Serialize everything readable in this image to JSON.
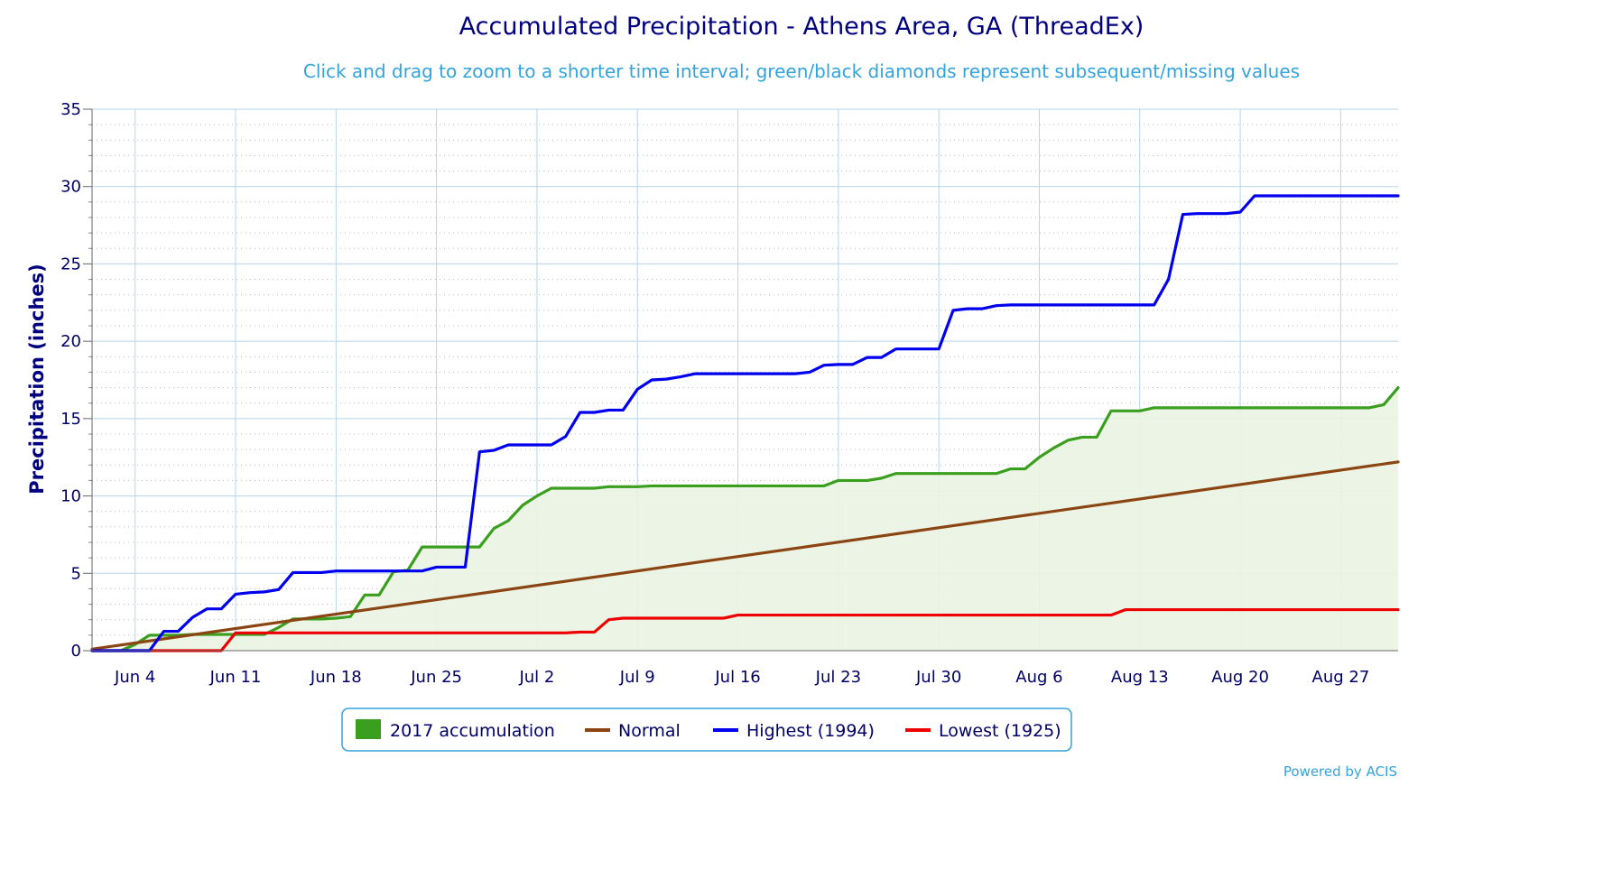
{
  "chart_data": {
    "type": "line",
    "title": "Accumulated Precipitation - Athens Area, GA (ThreadEx)",
    "subtitle": "Click and drag to zoom to a shorter time interval; green/black diamonds represent subsequent/missing values",
    "ylabel": "Precipitation (inches)",
    "xlabel": "",
    "credit": "Powered by ACIS",
    "ylim": [
      0,
      35
    ],
    "y_ticks": [
      0,
      5,
      10,
      15,
      20,
      25,
      30,
      35
    ],
    "y_tick_labels": [
      "0",
      "5",
      "10",
      "15",
      "20",
      "25",
      "30",
      "35"
    ],
    "xlim": [
      "2017-06-01",
      "2017-08-31"
    ],
    "x_ticks": [
      "2017-06-04",
      "2017-06-11",
      "2017-06-18",
      "2017-06-25",
      "2017-07-02",
      "2017-07-09",
      "2017-07-16",
      "2017-07-23",
      "2017-07-30",
      "2017-08-06",
      "2017-08-13",
      "2017-08-20",
      "2017-08-27"
    ],
    "x_tick_labels": [
      "Jun 4",
      "Jun 11",
      "Jun 18",
      "Jun 25",
      "Jul 2",
      "Jul 9",
      "Jul 16",
      "Jul 23",
      "Jul 30",
      "Aug 6",
      "Aug 13",
      "Aug 20",
      "Aug 27"
    ],
    "grid": true,
    "legend_position": "bottom",
    "colors": {
      "accum_line": "#3a9e1e",
      "accum_fill": "#eaf4e2",
      "accum_legend": "#3a9e1e",
      "normal": "#8b4513",
      "highest": "#0000ee",
      "lowest": "#ee0000",
      "grid_major": "#b5d5e8",
      "grid_minor": "#bbbbbb",
      "text": "#000066"
    },
    "series": [
      {
        "name": "2017 accumulation",
        "style": "area",
        "points": [
          [
            "2017-06-01",
            0.0
          ],
          [
            "2017-06-02",
            0.0
          ],
          [
            "2017-06-03",
            0.0
          ],
          [
            "2017-06-04",
            0.4
          ],
          [
            "2017-06-05",
            1.0
          ],
          [
            "2017-06-06",
            1.0
          ],
          [
            "2017-06-07",
            1.0
          ],
          [
            "2017-06-08",
            1.05
          ],
          [
            "2017-06-09",
            1.05
          ],
          [
            "2017-06-10",
            1.05
          ],
          [
            "2017-06-11",
            1.05
          ],
          [
            "2017-06-12",
            1.05
          ],
          [
            "2017-06-13",
            1.05
          ],
          [
            "2017-06-14",
            1.5
          ],
          [
            "2017-06-15",
            2.05
          ],
          [
            "2017-06-16",
            2.05
          ],
          [
            "2017-06-17",
            2.05
          ],
          [
            "2017-06-18",
            2.1
          ],
          [
            "2017-06-19",
            2.2
          ],
          [
            "2017-06-20",
            3.6
          ],
          [
            "2017-06-21",
            3.6
          ],
          [
            "2017-06-22",
            5.1
          ],
          [
            "2017-06-23",
            5.2
          ],
          [
            "2017-06-24",
            6.7
          ],
          [
            "2017-06-25",
            6.7
          ],
          [
            "2017-06-26",
            6.7
          ],
          [
            "2017-06-27",
            6.7
          ],
          [
            "2017-06-28",
            6.7
          ],
          [
            "2017-06-29",
            7.9
          ],
          [
            "2017-06-30",
            8.4
          ],
          [
            "2017-07-01",
            9.4
          ],
          [
            "2017-07-02",
            10.0
          ],
          [
            "2017-07-03",
            10.5
          ],
          [
            "2017-07-06",
            10.5
          ],
          [
            "2017-07-07",
            10.6
          ],
          [
            "2017-07-09",
            10.6
          ],
          [
            "2017-07-10",
            10.65
          ],
          [
            "2017-07-20",
            10.65
          ],
          [
            "2017-07-21",
            10.65
          ],
          [
            "2017-07-22",
            10.65
          ],
          [
            "2017-07-23",
            11.0
          ],
          [
            "2017-07-25",
            11.0
          ],
          [
            "2017-07-26",
            11.15
          ],
          [
            "2017-07-27",
            11.45
          ],
          [
            "2017-08-03",
            11.45
          ],
          [
            "2017-08-04",
            11.75
          ],
          [
            "2017-08-05",
            11.75
          ],
          [
            "2017-08-06",
            12.5
          ],
          [
            "2017-08-07",
            13.1
          ],
          [
            "2017-08-08",
            13.6
          ],
          [
            "2017-08-09",
            13.8
          ],
          [
            "2017-08-10",
            13.8
          ],
          [
            "2017-08-11",
            15.5
          ],
          [
            "2017-08-13",
            15.5
          ],
          [
            "2017-08-14",
            15.7
          ],
          [
            "2017-08-29",
            15.7
          ],
          [
            "2017-08-30",
            15.9
          ],
          [
            "2017-08-31",
            17.0
          ]
        ]
      },
      {
        "name": "Normal",
        "style": "line",
        "points": [
          [
            "2017-06-01",
            0.1
          ],
          [
            "2017-08-31",
            12.2
          ]
        ]
      },
      {
        "name": "Highest (1994)",
        "style": "line",
        "points": [
          [
            "2017-06-01",
            0.0
          ],
          [
            "2017-06-05",
            0.0
          ],
          [
            "2017-06-06",
            1.25
          ],
          [
            "2017-06-07",
            1.25
          ],
          [
            "2017-06-08",
            2.15
          ],
          [
            "2017-06-09",
            2.7
          ],
          [
            "2017-06-10",
            2.7
          ],
          [
            "2017-06-11",
            3.65
          ],
          [
            "2017-06-12",
            3.75
          ],
          [
            "2017-06-13",
            3.8
          ],
          [
            "2017-06-14",
            3.95
          ],
          [
            "2017-06-15",
            5.05
          ],
          [
            "2017-06-17",
            5.05
          ],
          [
            "2017-06-18",
            5.15
          ],
          [
            "2017-06-24",
            5.15
          ],
          [
            "2017-06-25",
            5.4
          ],
          [
            "2017-06-27",
            5.4
          ],
          [
            "2017-06-28",
            12.85
          ],
          [
            "2017-06-29",
            12.95
          ],
          [
            "2017-06-30",
            13.3
          ],
          [
            "2017-07-03",
            13.3
          ],
          [
            "2017-07-04",
            13.85
          ],
          [
            "2017-07-05",
            15.4
          ],
          [
            "2017-07-06",
            15.4
          ],
          [
            "2017-07-07",
            15.55
          ],
          [
            "2017-07-08",
            15.55
          ],
          [
            "2017-07-09",
            16.9
          ],
          [
            "2017-07-10",
            17.5
          ],
          [
            "2017-07-11",
            17.55
          ],
          [
            "2017-07-12",
            17.7
          ],
          [
            "2017-07-13",
            17.9
          ],
          [
            "2017-07-20",
            17.9
          ],
          [
            "2017-07-21",
            18.0
          ],
          [
            "2017-07-22",
            18.45
          ],
          [
            "2017-07-23",
            18.5
          ],
          [
            "2017-07-24",
            18.5
          ],
          [
            "2017-07-25",
            18.95
          ],
          [
            "2017-07-26",
            18.95
          ],
          [
            "2017-07-27",
            19.5
          ],
          [
            "2017-07-30",
            19.5
          ],
          [
            "2017-07-31",
            22.0
          ],
          [
            "2017-08-01",
            22.1
          ],
          [
            "2017-08-02",
            22.1
          ],
          [
            "2017-08-03",
            22.3
          ],
          [
            "2017-08-04",
            22.35
          ],
          [
            "2017-08-14",
            22.35
          ],
          [
            "2017-08-15",
            24.0
          ],
          [
            "2017-08-16",
            28.2
          ],
          [
            "2017-08-17",
            28.25
          ],
          [
            "2017-08-19",
            28.25
          ],
          [
            "2017-08-20",
            28.35
          ],
          [
            "2017-08-21",
            29.4
          ],
          [
            "2017-08-31",
            29.4
          ]
        ]
      },
      {
        "name": "Lowest (1925)",
        "style": "line",
        "points": [
          [
            "2017-06-01",
            0.0
          ],
          [
            "2017-06-10",
            0.0
          ],
          [
            "2017-06-11",
            1.15
          ],
          [
            "2017-07-03",
            1.15
          ],
          [
            "2017-07-04",
            1.15
          ],
          [
            "2017-07-05",
            1.2
          ],
          [
            "2017-07-06",
            1.2
          ],
          [
            "2017-07-07",
            2.0
          ],
          [
            "2017-07-08",
            2.1
          ],
          [
            "2017-07-15",
            2.1
          ],
          [
            "2017-07-16",
            2.3
          ],
          [
            "2017-08-11",
            2.3
          ],
          [
            "2017-08-12",
            2.65
          ],
          [
            "2017-08-31",
            2.65
          ]
        ]
      }
    ]
  }
}
